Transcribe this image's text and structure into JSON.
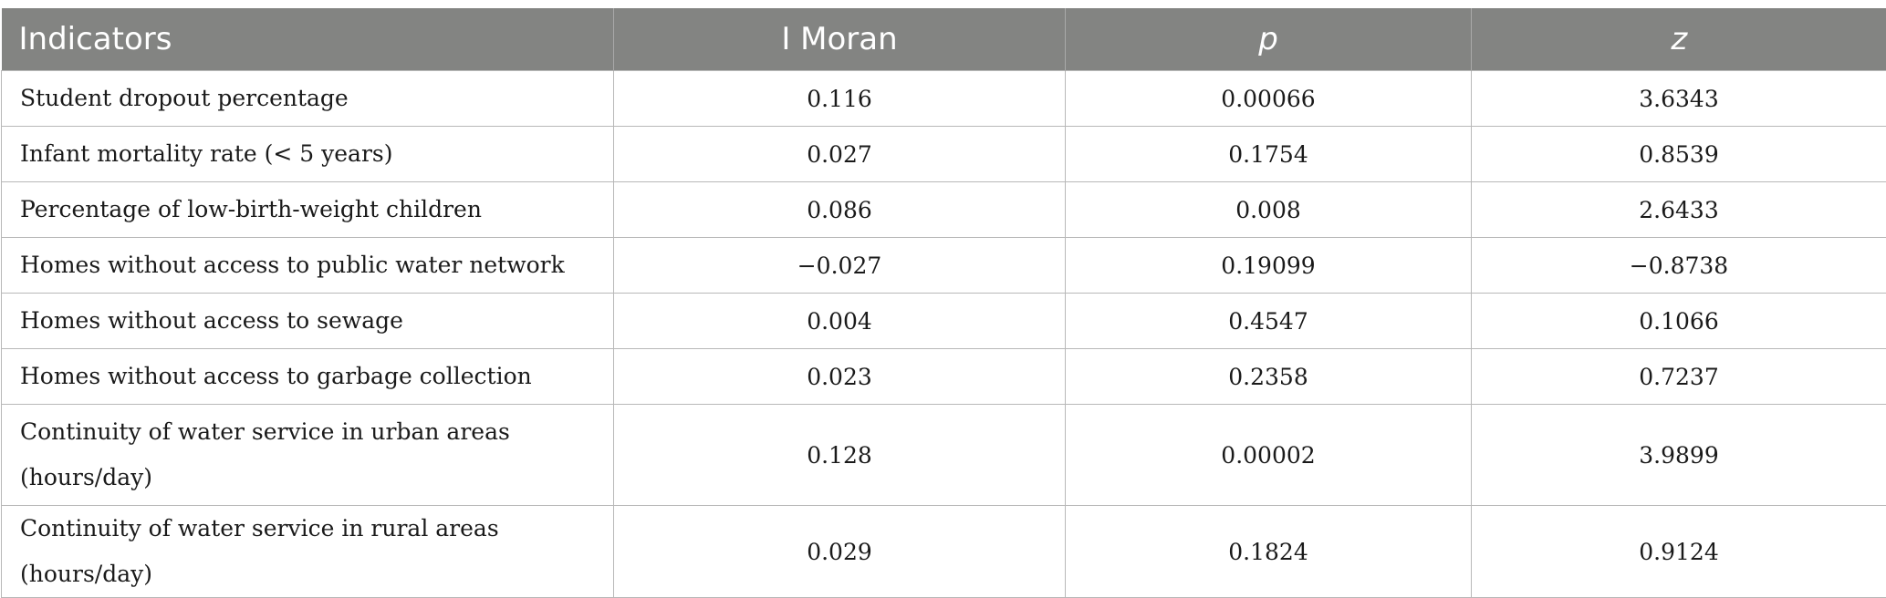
{
  "table": {
    "headers": [
      "Indicators",
      "I Moran",
      "p",
      "z"
    ],
    "rows": [
      [
        "Student dropout percentage",
        "0.116",
        "0.00066",
        "3.6343"
      ],
      [
        "Infant mortality rate (< 5 years)",
        "0.027",
        "0.1754",
        "0.8539"
      ],
      [
        "Percentage of low-birth-weight children",
        "0.086",
        "0.008",
        "2.6433"
      ],
      [
        "Homes without access to public water network",
        "−0.027",
        "0.19099",
        "−0.8738"
      ],
      [
        "Homes without access to sewage",
        "0.004",
        "0.4547",
        "0.1066"
      ],
      [
        "Homes without access to garbage collection",
        "0.023",
        "0.2358",
        "0.7237"
      ],
      [
        "Continuity of water service in urban areas (hours/day)",
        "0.128",
        "0.00002",
        "3.9899"
      ],
      [
        "Continuity of water service in rural areas (hours/day)",
        "0.029",
        "0.1824",
        "0.9124"
      ]
    ]
  },
  "colors": {
    "header_bg": "#838482",
    "header_text": "#ffffff",
    "border": "#b8b8b8"
  }
}
